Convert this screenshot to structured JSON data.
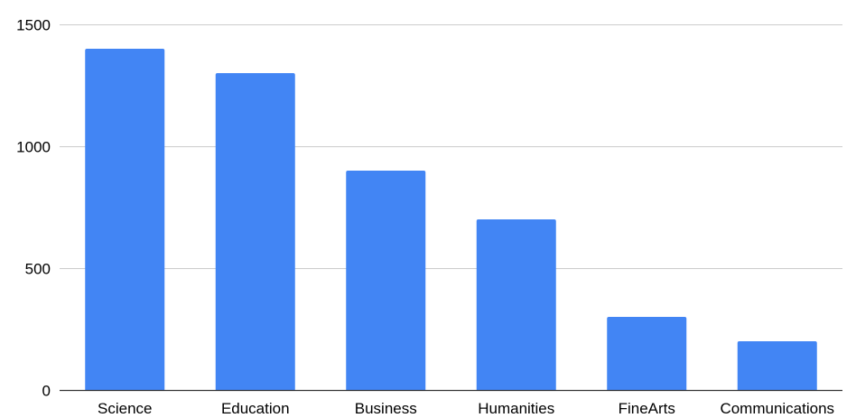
{
  "chart_data": {
    "type": "bar",
    "title": "",
    "xlabel": "",
    "ylabel": "",
    "categories": [
      "Science",
      "Education",
      "Business",
      "Humanities",
      "FineArts",
      "Communications"
    ],
    "series": [
      {
        "values": [
          1400,
          1300,
          900,
          700,
          300,
          200
        ],
        "color": "#4285f4"
      }
    ],
    "ylim": [
      0,
      1500
    ],
    "yticks": [
      0,
      500,
      1000,
      1500
    ],
    "ytick_labels": [
      "0",
      "500",
      "1000",
      "1500"
    ],
    "grid": true,
    "legend": "none",
    "colors": {
      "bar": "#4285f4",
      "grid": "#cccccc",
      "axis": "#333333",
      "text": "#000000"
    }
  }
}
